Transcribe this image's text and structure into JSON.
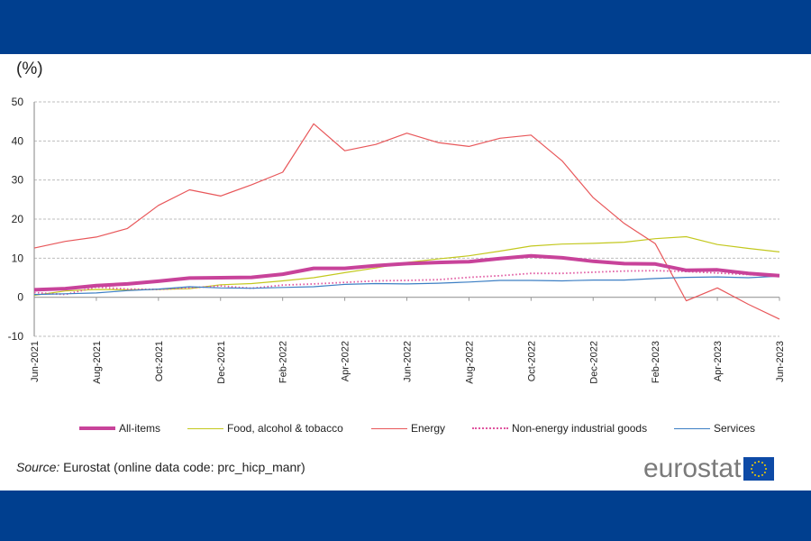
{
  "chart_data": {
    "type": "line",
    "ylabel": "(%)",
    "ylim": [
      -10,
      50
    ],
    "yticks": [
      -10,
      0,
      10,
      20,
      30,
      40,
      50
    ],
    "grid": true,
    "legend_placement": "bottom",
    "x": [
      "Jun-2021",
      "Jul-2021",
      "Aug-2021",
      "Sep-2021",
      "Oct-2021",
      "Nov-2021",
      "Dec-2021",
      "Jan-2022",
      "Feb-2022",
      "Mar-2022",
      "Apr-2022",
      "May-2022",
      "Jun-2022",
      "Jul-2022",
      "Aug-2022",
      "Sep-2022",
      "Oct-2022",
      "Nov-2022",
      "Dec-2022",
      "Jan-2023",
      "Feb-2023",
      "Mar-2023",
      "Apr-2023",
      "May-2023",
      "Jun-2023"
    ],
    "xtick_labels": [
      "Jun-2021",
      "Aug-2021",
      "Oct-2021",
      "Dec-2021",
      "Feb-2022",
      "Apr-2022",
      "Jun-2022",
      "Aug-2022",
      "Oct-2022",
      "Dec-2022",
      "Feb-2023",
      "Apr-2023",
      "Jun-2023"
    ],
    "series": [
      {
        "name": "All-items",
        "color": "#c8439a",
        "style": "thick",
        "values": [
          1.9,
          2.2,
          3.0,
          3.4,
          4.1,
          4.9,
          5.0,
          5.1,
          5.9,
          7.4,
          7.4,
          8.1,
          8.6,
          8.9,
          9.1,
          9.9,
          10.6,
          10.1,
          9.2,
          8.6,
          8.5,
          6.9,
          7.0,
          6.1,
          5.5
        ]
      },
      {
        "name": "Food, alcohol & tobacco",
        "color": "#c3c81e",
        "style": "solid",
        "values": [
          0.5,
          1.6,
          2.0,
          1.9,
          2.0,
          2.2,
          3.2,
          3.5,
          4.2,
          5.0,
          6.3,
          7.5,
          8.9,
          9.8,
          10.6,
          11.8,
          13.1,
          13.6,
          13.8,
          14.1,
          15.0,
          15.5,
          13.5,
          12.5,
          11.6
        ]
      },
      {
        "name": "Energy",
        "color": "#e8575a",
        "style": "solid",
        "values": [
          12.6,
          14.3,
          15.4,
          17.6,
          23.5,
          27.5,
          25.9,
          28.8,
          32.0,
          44.4,
          37.5,
          39.1,
          42.0,
          39.6,
          38.6,
          40.7,
          41.5,
          34.9,
          25.5,
          18.9,
          13.7,
          -0.9,
          2.4,
          -1.8,
          -5.6
        ]
      },
      {
        "name": "Non-energy industrial goods",
        "color": "#e0559f",
        "style": "dotted",
        "values": [
          1.2,
          0.7,
          2.6,
          2.1,
          2.0,
          2.4,
          2.9,
          2.3,
          3.1,
          3.4,
          3.8,
          4.2,
          4.3,
          4.5,
          5.1,
          5.5,
          6.1,
          6.1,
          6.4,
          6.7,
          6.8,
          6.6,
          6.2,
          5.8,
          5.5
        ]
      },
      {
        "name": "Services",
        "color": "#3d7fc4",
        "style": "solid",
        "values": [
          0.7,
          0.9,
          1.1,
          1.7,
          2.1,
          2.7,
          2.4,
          2.3,
          2.5,
          2.7,
          3.3,
          3.5,
          3.4,
          3.6,
          3.9,
          4.3,
          4.3,
          4.2,
          4.4,
          4.4,
          4.8,
          5.1,
          5.2,
          5.0,
          5.4
        ]
      }
    ]
  },
  "source": {
    "label": "Source:",
    "text": " Eurostat (online data code: prc_hicp_manr)"
  },
  "logo": {
    "text": "eurostat"
  },
  "colors": {
    "band": "#003f8f",
    "grid": "#bdbdbd",
    "axis": "#999999"
  }
}
